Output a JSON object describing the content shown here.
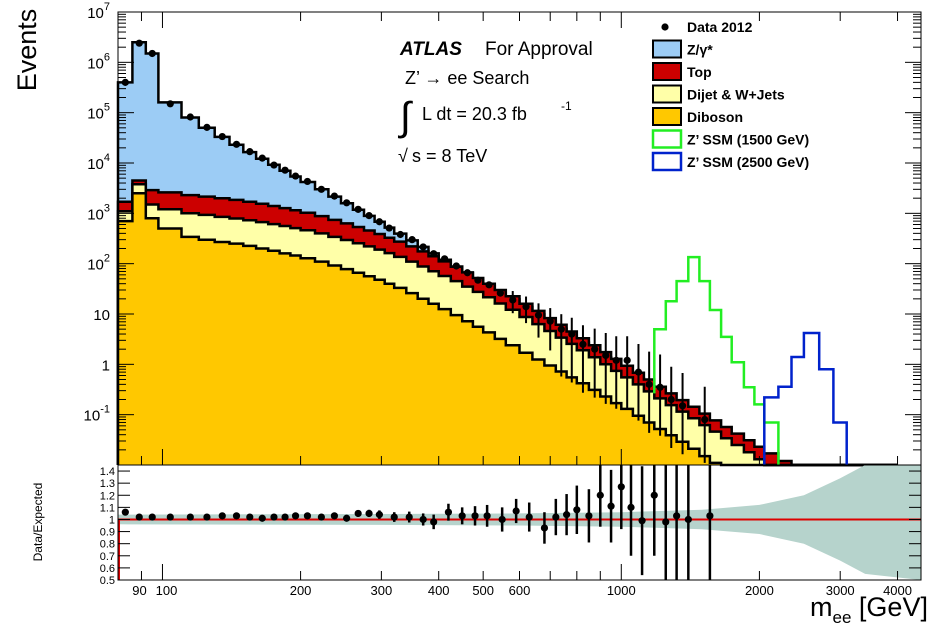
{
  "chart_data": [
    {
      "type": "area",
      "log_y": true,
      "log_x": true,
      "y_label": "Events",
      "y_ticks": [
        "10^7",
        "10^6",
        "10^5",
        "10^4",
        "10^3",
        "10^2",
        "10",
        "1",
        "10^-1"
      ],
      "y_tick_values": [
        10000000.0,
        1000000.0,
        100000.0,
        10000.0,
        1000.0,
        100,
        10,
        1,
        0.1
      ],
      "ylim": [
        0.01,
        10000000.0
      ],
      "xlim": [
        80,
        4500
      ],
      "annotations": {
        "experiment": "ATLAS",
        "status": "For Approval",
        "process": "Z’ → ee Search",
        "lumi": "L dt = 20.3 fb",
        "lumi_exp": "-1",
        "energy": "s = 8 TeV",
        "integral_symbol": "∫",
        "sqrt_symbol": "√"
      },
      "legend_position": "top-right",
      "legend": [
        {
          "label": "Data 2012",
          "style": "marker",
          "color": "#000000"
        },
        {
          "label": "Z/γ*",
          "style": "fill",
          "color": "#9cccf5"
        },
        {
          "label": "Top",
          "style": "fill",
          "color": "#cc0000"
        },
        {
          "label": "Dijet & W+Jets",
          "style": "fill",
          "color": "#ffffa8"
        },
        {
          "label": "Diboson",
          "style": "fill",
          "color": "#ffc800"
        },
        {
          "label": "Z’ SSM (1500 GeV)",
          "style": "line",
          "color": "#22ee22"
        },
        {
          "label": "Z’ SSM (2500 GeV)",
          "style": "line",
          "color": "#0022cc"
        }
      ],
      "bin_edges": [
        80,
        86,
        92,
        98,
        110,
        120,
        130,
        140,
        150,
        160,
        170,
        180,
        190,
        200,
        215,
        230,
        245,
        260,
        275,
        290,
        305,
        320,
        340,
        360,
        380,
        400,
        425,
        450,
        475,
        500,
        530,
        560,
        600,
        640,
        680,
        720,
        760,
        800,
        850,
        900,
        950,
        1000,
        1060,
        1120,
        1180,
        1250,
        1320,
        1400,
        1480,
        1560,
        1650,
        1740,
        1850,
        1950,
        2050,
        2200,
        2350,
        2500,
        2700,
        2900,
        3100,
        3400,
        3700,
        4000
      ],
      "stack": {
        "diboson": [
          700,
          2500,
          800,
          500,
          340,
          300,
          270,
          250,
          225,
          200,
          180,
          160,
          145,
          128,
          110,
          92,
          78,
          66,
          56,
          48,
          40,
          33,
          26,
          20,
          16,
          12.5,
          9.5,
          7.2,
          5.6,
          4.3,
          3.2,
          2.4,
          1.7,
          1.25,
          0.95,
          0.72,
          0.55,
          0.42,
          0.31,
          0.23,
          0.17,
          0.13,
          0.095,
          0.07,
          0.052,
          0.039,
          0.029,
          0.021,
          0.015,
          0.011,
          0.008,
          0.006,
          0.0045,
          0.0034,
          0.0026,
          0.002,
          0.0015,
          0.0011,
          0.0008,
          0.0006,
          0.0004,
          0.0003,
          0.0002
        ],
        "dijet_wjets": [
          1100,
          3800,
          1500,
          1200,
          1000,
          930,
          850,
          790,
          730,
          670,
          610,
          560,
          510,
          460,
          400,
          340,
          295,
          255,
          220,
          190,
          162,
          136,
          110,
          88,
          71,
          57,
          45,
          35,
          27.5,
          21.5,
          16.2,
          12.2,
          8.7,
          6.3,
          4.6,
          3.4,
          2.55,
          1.9,
          1.38,
          1.0,
          0.74,
          0.55,
          0.4,
          0.29,
          0.21,
          0.155,
          0.115,
          0.085,
          0.062,
          0.046,
          0.034,
          0.025,
          0.018,
          0.013,
          0.01,
          0.0072,
          0.0052,
          0.0038,
          0.0027,
          0.002,
          0.0014,
          0.001,
          0.0007
        ],
        "top": [
          1700,
          4500,
          2900,
          2600,
          2300,
          2150,
          2000,
          1850,
          1700,
          1550,
          1400,
          1270,
          1150,
          1030,
          880,
          740,
          630,
          535,
          455,
          388,
          328,
          274,
          220,
          175,
          140,
          111,
          87,
          67,
          52,
          40,
          30,
          22.5,
          16,
          11.5,
          8.3,
          6.1,
          4.5,
          3.3,
          2.4,
          1.75,
          1.28,
          0.94,
          0.68,
          0.5,
          0.36,
          0.265,
          0.195,
          0.143,
          0.105,
          0.077,
          0.057,
          0.042,
          0.031,
          0.023,
          0.017,
          0.012,
          0.0088,
          0.0064,
          0.0046,
          0.0033,
          0.0024,
          0.0017,
          0.0012
        ],
        "total_sm": [
          400000,
          2500000,
          1500000,
          160000,
          80000,
          50000,
          33000,
          23000,
          16500,
          12200,
          9200,
          7000,
          5400,
          4200,
          3000,
          2150,
          1580,
          1180,
          890,
          680,
          520,
          395,
          290,
          215,
          160,
          120,
          88,
          65,
          48,
          36,
          26.5,
          19.5,
          13.8,
          9.8,
          7.0,
          5.1,
          3.7,
          2.7,
          1.9,
          1.38,
          1.0,
          0.72,
          0.52,
          0.37,
          0.265,
          0.19,
          0.135,
          0.096,
          0.068,
          0.049,
          0.035,
          0.025,
          0.018,
          0.013,
          0.0092,
          0.0066,
          0.0047,
          0.0034,
          0.0024,
          0.0017,
          0.0012,
          0.0008,
          0.0005
        ]
      },
      "data_points": [
        {
          "x": 83,
          "y": 400000
        },
        {
          "x": 89,
          "y": 2400000
        },
        {
          "x": 95,
          "y": 1500000
        },
        {
          "x": 104,
          "y": 150000
        },
        {
          "x": 115,
          "y": 82000
        },
        {
          "x": 125,
          "y": 51000
        },
        {
          "x": 135,
          "y": 33500
        },
        {
          "x": 145,
          "y": 23500
        },
        {
          "x": 155,
          "y": 16800
        },
        {
          "x": 165,
          "y": 12500
        },
        {
          "x": 175,
          "y": 9100
        },
        {
          "x": 185,
          "y": 7200
        },
        {
          "x": 195,
          "y": 5500
        },
        {
          "x": 207,
          "y": 4300
        },
        {
          "x": 222,
          "y": 3000
        },
        {
          "x": 237,
          "y": 2200
        },
        {
          "x": 252,
          "y": 1620
        },
        {
          "x": 267,
          "y": 1200
        },
        {
          "x": 282,
          "y": 900
        },
        {
          "x": 297,
          "y": 680
        },
        {
          "x": 312,
          "y": 510
        },
        {
          "x": 330,
          "y": 380
        },
        {
          "x": 350,
          "y": 300
        },
        {
          "x": 370,
          "y": 215
        },
        {
          "x": 390,
          "y": 158
        },
        {
          "x": 412,
          "y": 125
        },
        {
          "x": 437,
          "y": 90
        },
        {
          "x": 462,
          "y": 66
        },
        {
          "x": 487,
          "y": 47
        },
        {
          "x": 515,
          "y": 38
        },
        {
          "x": 545,
          "y": 26
        },
        {
          "x": 580,
          "y": 19
        },
        {
          "x": 620,
          "y": 14
        },
        {
          "x": 660,
          "y": 9.5
        },
        {
          "x": 700,
          "y": 7.2
        },
        {
          "x": 740,
          "y": 5
        },
        {
          "x": 780,
          "y": 4
        },
        {
          "x": 825,
          "y": 2.5
        },
        {
          "x": 875,
          "y": 2
        },
        {
          "x": 925,
          "y": 1.5
        },
        {
          "x": 975,
          "y": 1.2
        },
        {
          "x": 1030,
          "y": 1.2
        },
        {
          "x": 1090,
          "y": 0.7
        },
        {
          "x": 1150,
          "y": 0.4
        },
        {
          "x": 1215,
          "y": 0.35
        },
        {
          "x": 1285,
          "y": 0.2
        },
        {
          "x": 1360,
          "y": 0.15
        },
        {
          "x": 1520,
          "y": 0.08
        }
      ],
      "signals": [
        {
          "name": "Z’ SSM (1500 GeV)",
          "bins": [
            [
              1180,
              1250,
              5
            ],
            [
              1250,
              1320,
              18
            ],
            [
              1320,
              1400,
              45
            ],
            [
              1400,
              1480,
              135
            ],
            [
              1480,
              1560,
              45
            ],
            [
              1560,
              1650,
              12
            ],
            [
              1650,
              1740,
              3.5
            ],
            [
              1740,
              1850,
              1.1
            ],
            [
              1850,
              1950,
              0.35
            ],
            [
              1950,
              2050,
              0.16
            ],
            [
              2050,
              2200,
              0.07
            ]
          ]
        },
        {
          "name": "Z’ SSM (2500 GeV)",
          "bins": [
            [
              2050,
              2200,
              0.22
            ],
            [
              2200,
              2350,
              0.36
            ],
            [
              2350,
              2500,
              1.4
            ],
            [
              2500,
              2700,
              4.2
            ],
            [
              2700,
              2900,
              0.8
            ],
            [
              2900,
              3100,
              0.07
            ]
          ]
        }
      ]
    },
    {
      "type": "scatter",
      "y_label": "Data/Expected",
      "x_label": "m",
      "x_label_sub": "ee",
      "x_label_unit": " [GeV]",
      "ylim": [
        0.5,
        1.45
      ],
      "y_ticks": [
        "1.4",
        "1.3",
        "1.2",
        "1.1",
        "1",
        "0.9",
        "0.8",
        "0.7",
        "0.6",
        "0.5"
      ],
      "y_tick_values": [
        1.4,
        1.3,
        1.2,
        1.1,
        1.0,
        0.9,
        0.8,
        0.7,
        0.6,
        0.5
      ],
      "x_tick_labels": [
        "90",
        "100",
        "200",
        "300",
        "400",
        "500",
        "600",
        "1000",
        "2000",
        "3000",
        "4000"
      ],
      "x_tick_values": [
        90,
        100,
        200,
        300,
        400,
        500,
        600,
        1000,
        2000,
        3000,
        4000
      ],
      "reference_line": 1.0,
      "reference_color": "#dd0000",
      "band_color": "#b6d3cc",
      "band": [
        {
          "x": 80,
          "lo": 0.96,
          "hi": 1.04
        },
        {
          "x": 300,
          "lo": 0.955,
          "hi": 1.045
        },
        {
          "x": 600,
          "lo": 0.95,
          "hi": 1.05
        },
        {
          "x": 1000,
          "lo": 0.94,
          "hi": 1.06
        },
        {
          "x": 1500,
          "lo": 0.92,
          "hi": 1.08
        },
        {
          "x": 2000,
          "lo": 0.88,
          "hi": 1.12
        },
        {
          "x": 2500,
          "lo": 0.8,
          "hi": 1.2
        },
        {
          "x": 3000,
          "lo": 0.66,
          "hi": 1.34
        },
        {
          "x": 3400,
          "lo": 0.55,
          "hi": 1.45
        },
        {
          "x": 4500,
          "lo": 0.5,
          "hi": 1.45
        }
      ],
      "points": [
        {
          "x": 83,
          "y": 1.06,
          "err": 0.005
        },
        {
          "x": 89,
          "y": 1.02,
          "err": 0.003
        },
        {
          "x": 95,
          "y": 1.02,
          "err": 0.003
        },
        {
          "x": 104,
          "y": 1.02,
          "err": 0.005
        },
        {
          "x": 115,
          "y": 1.02,
          "err": 0.006
        },
        {
          "x": 125,
          "y": 1.02,
          "err": 0.008
        },
        {
          "x": 135,
          "y": 1.03,
          "err": 0.009
        },
        {
          "x": 145,
          "y": 1.03,
          "err": 0.01
        },
        {
          "x": 155,
          "y": 1.02,
          "err": 0.012
        },
        {
          "x": 165,
          "y": 1.01,
          "err": 0.013
        },
        {
          "x": 175,
          "y": 1.02,
          "err": 0.014
        },
        {
          "x": 185,
          "y": 1.02,
          "err": 0.015
        },
        {
          "x": 195,
          "y": 1.03,
          "err": 0.016
        },
        {
          "x": 207,
          "y": 1.03,
          "err": 0.018
        },
        {
          "x": 222,
          "y": 1.02,
          "err": 0.02
        },
        {
          "x": 237,
          "y": 1.03,
          "err": 0.022
        },
        {
          "x": 252,
          "y": 1.01,
          "err": 0.025
        },
        {
          "x": 267,
          "y": 1.05,
          "err": 0.028
        },
        {
          "x": 282,
          "y": 1.05,
          "err": 0.03
        },
        {
          "x": 297,
          "y": 1.04,
          "err": 0.035
        },
        {
          "x": 320,
          "y": 1.02,
          "err": 0.04
        },
        {
          "x": 345,
          "y": 1.02,
          "err": 0.045
        },
        {
          "x": 370,
          "y": 1.0,
          "err": 0.05
        },
        {
          "x": 390,
          "y": 0.98,
          "err": 0.06
        },
        {
          "x": 420,
          "y": 1.06,
          "err": 0.07
        },
        {
          "x": 450,
          "y": 1.03,
          "err": 0.07
        },
        {
          "x": 480,
          "y": 1.03,
          "err": 0.08
        },
        {
          "x": 510,
          "y": 1.03,
          "err": 0.09
        },
        {
          "x": 550,
          "y": 1.0,
          "err": 0.1
        },
        {
          "x": 590,
          "y": 1.07,
          "err": 0.1
        },
        {
          "x": 630,
          "y": 1.02,
          "err": 0.12
        },
        {
          "x": 680,
          "y": 0.93,
          "err": 0.13
        },
        {
          "x": 720,
          "y": 1.02,
          "err": 0.15
        },
        {
          "x": 760,
          "y": 1.04,
          "err": 0.17
        },
        {
          "x": 800,
          "y": 1.08,
          "err": 0.2
        },
        {
          "x": 850,
          "y": 1.03,
          "err": 0.22
        },
        {
          "x": 900,
          "y": 1.2,
          "err": 0.26
        },
        {
          "x": 950,
          "y": 1.11,
          "err": 0.3
        },
        {
          "x": 1000,
          "y": 1.27,
          "err": 0.35
        },
        {
          "x": 1050,
          "y": 1.1,
          "err": 0.4
        },
        {
          "x": 1110,
          "y": 0.99,
          "err": 0.45
        },
        {
          "x": 1180,
          "y": 1.2,
          "err": 0.5
        },
        {
          "x": 1250,
          "y": 0.98,
          "err": 0.55
        },
        {
          "x": 1320,
          "y": 1.03,
          "err": 0.6
        },
        {
          "x": 1400,
          "y": 1.0,
          "err": 0.7
        },
        {
          "x": 1560,
          "y": 1.03,
          "err": 0.8
        }
      ]
    }
  ]
}
